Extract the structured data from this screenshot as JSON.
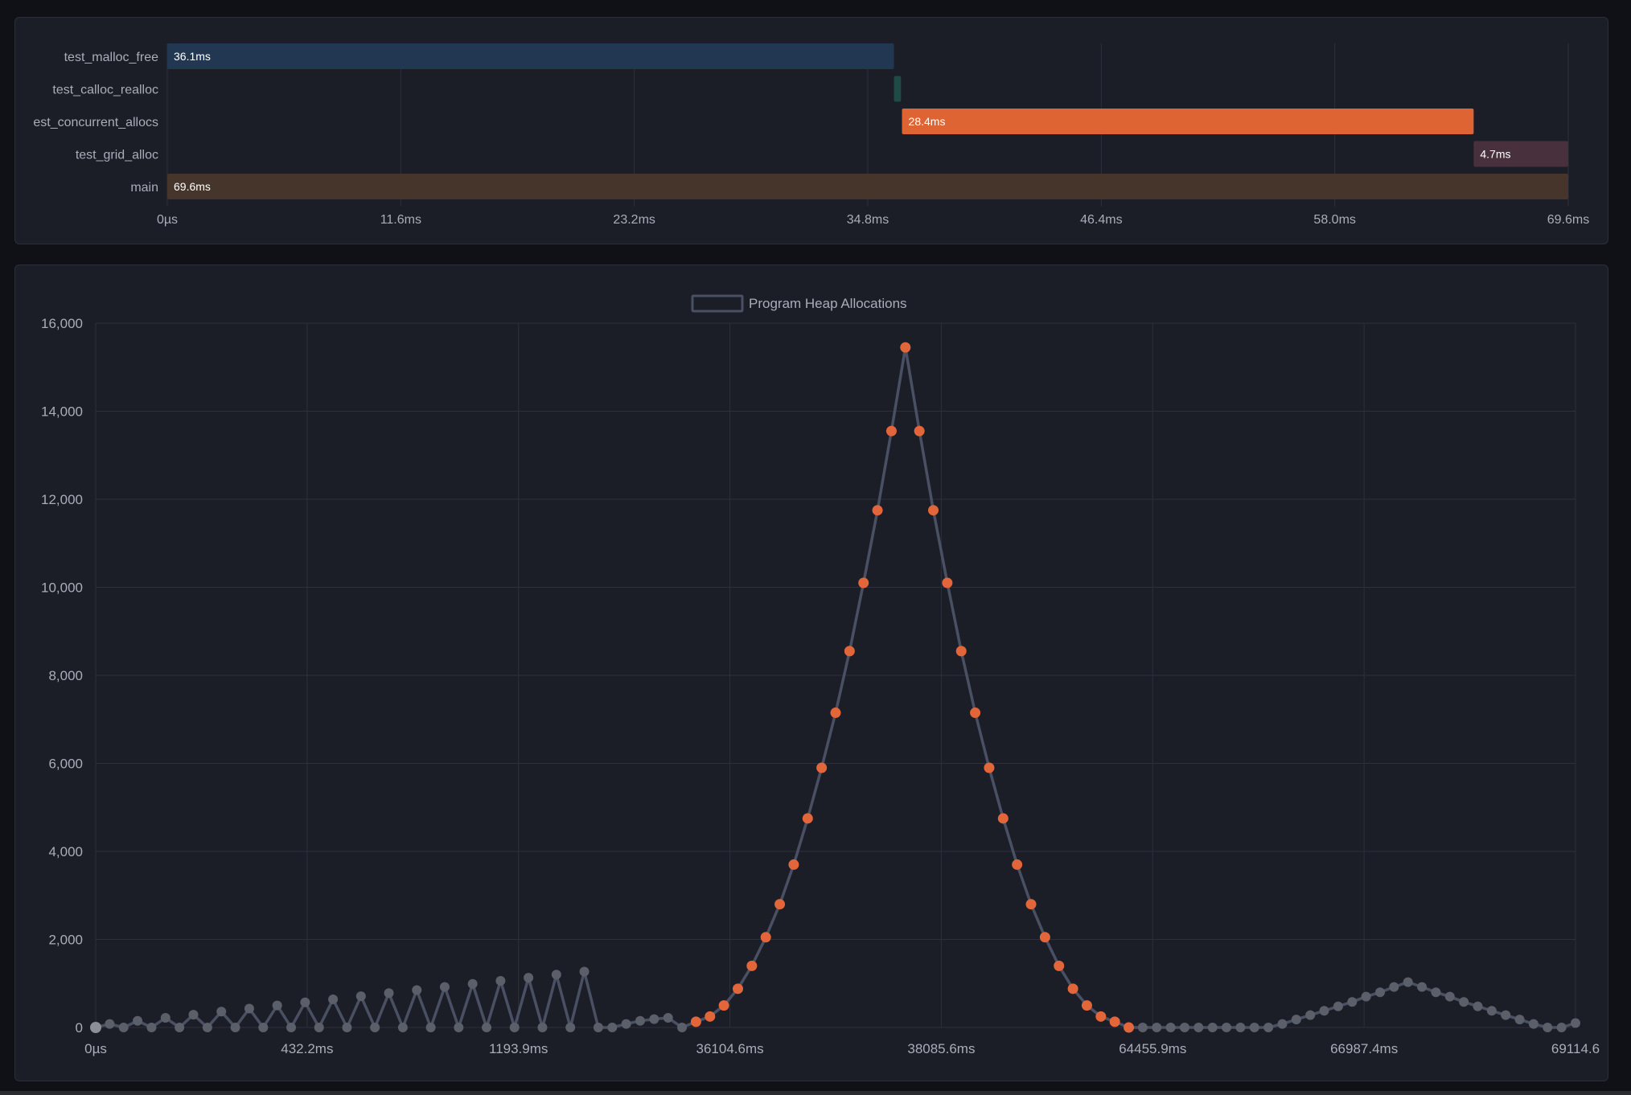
{
  "colors": {
    "page_bg": "#0f1117",
    "panel_bg": "#1b1e27",
    "grid": "#2c303c",
    "text": "#a9adb8",
    "line": "#4a5063",
    "highlight": "#e2663a",
    "point_gray": "#5b5f69"
  },
  "timeline": {
    "axis_max_ms": 69.6,
    "ticks": [
      "0µs",
      "11.6ms",
      "23.2ms",
      "34.8ms",
      "46.4ms",
      "58.0ms",
      "69.6ms"
    ],
    "rows": [
      {
        "label": "test_malloc_free",
        "start_ms": 0,
        "duration_ms": 36.1,
        "duration_label": "36.1ms",
        "color": "#223852"
      },
      {
        "label": "test_calloc_realloc",
        "start_ms": 36.1,
        "duration_ms": 0.35,
        "duration_label": "",
        "color": "#1f4a45"
      },
      {
        "label": "est_concurrent_allocs",
        "start_ms": 36.5,
        "duration_ms": 28.4,
        "duration_label": "28.4ms",
        "color": "#df6433"
      },
      {
        "label": "test_grid_alloc",
        "start_ms": 64.9,
        "duration_ms": 4.7,
        "duration_label": "4.7ms",
        "color": "#48303d"
      },
      {
        "label": "main",
        "start_ms": 0,
        "duration_ms": 69.6,
        "duration_label": "69.6ms",
        "color": "#45352a"
      }
    ]
  },
  "chart_data": {
    "type": "line",
    "title": "",
    "legend": {
      "label": "Program Heap Allocations",
      "position": "top-center"
    },
    "xlabel": "",
    "ylabel": "",
    "ylim": [
      0,
      16000
    ],
    "y_ticks": [
      "16,000",
      "14,000",
      "12,000",
      "10,000",
      "8,000",
      "6,000",
      "4,000",
      "2,000",
      "0"
    ],
    "x_tick_labels": [
      "0µs",
      "432.2ms",
      "1193.9ms",
      "36104.6ms",
      "38085.6ms",
      "64455.9ms",
      "66987.4ms",
      "69114.6"
    ],
    "grid": true,
    "series": [
      {
        "name": "Program Heap Allocations",
        "values": [
          0,
          80,
          0,
          150,
          0,
          220,
          0,
          290,
          0,
          360,
          0,
          430,
          0,
          500,
          0,
          570,
          0,
          640,
          0,
          710,
          0,
          780,
          0,
          850,
          0,
          920,
          0,
          990,
          0,
          1060,
          0,
          1130,
          0,
          1200,
          0,
          1270,
          0,
          0,
          80,
          150,
          190,
          220,
          0,
          130,
          250,
          500,
          880,
          1400,
          2050,
          2800,
          3700,
          4750,
          5900,
          7150,
          8550,
          10100,
          11750,
          13550,
          15450,
          13550,
          11750,
          10100,
          8550,
          7150,
          5900,
          4750,
          3700,
          2800,
          2050,
          1400,
          880,
          500,
          250,
          130,
          0,
          0,
          0,
          0,
          0,
          0,
          0,
          0,
          0,
          0,
          0,
          80,
          180,
          280,
          380,
          480,
          580,
          700,
          800,
          920,
          1030,
          920,
          800,
          700,
          580,
          480,
          380,
          280,
          180,
          80,
          0,
          0,
          100
        ],
        "highlight_range": [
          43,
          74
        ]
      }
    ]
  }
}
